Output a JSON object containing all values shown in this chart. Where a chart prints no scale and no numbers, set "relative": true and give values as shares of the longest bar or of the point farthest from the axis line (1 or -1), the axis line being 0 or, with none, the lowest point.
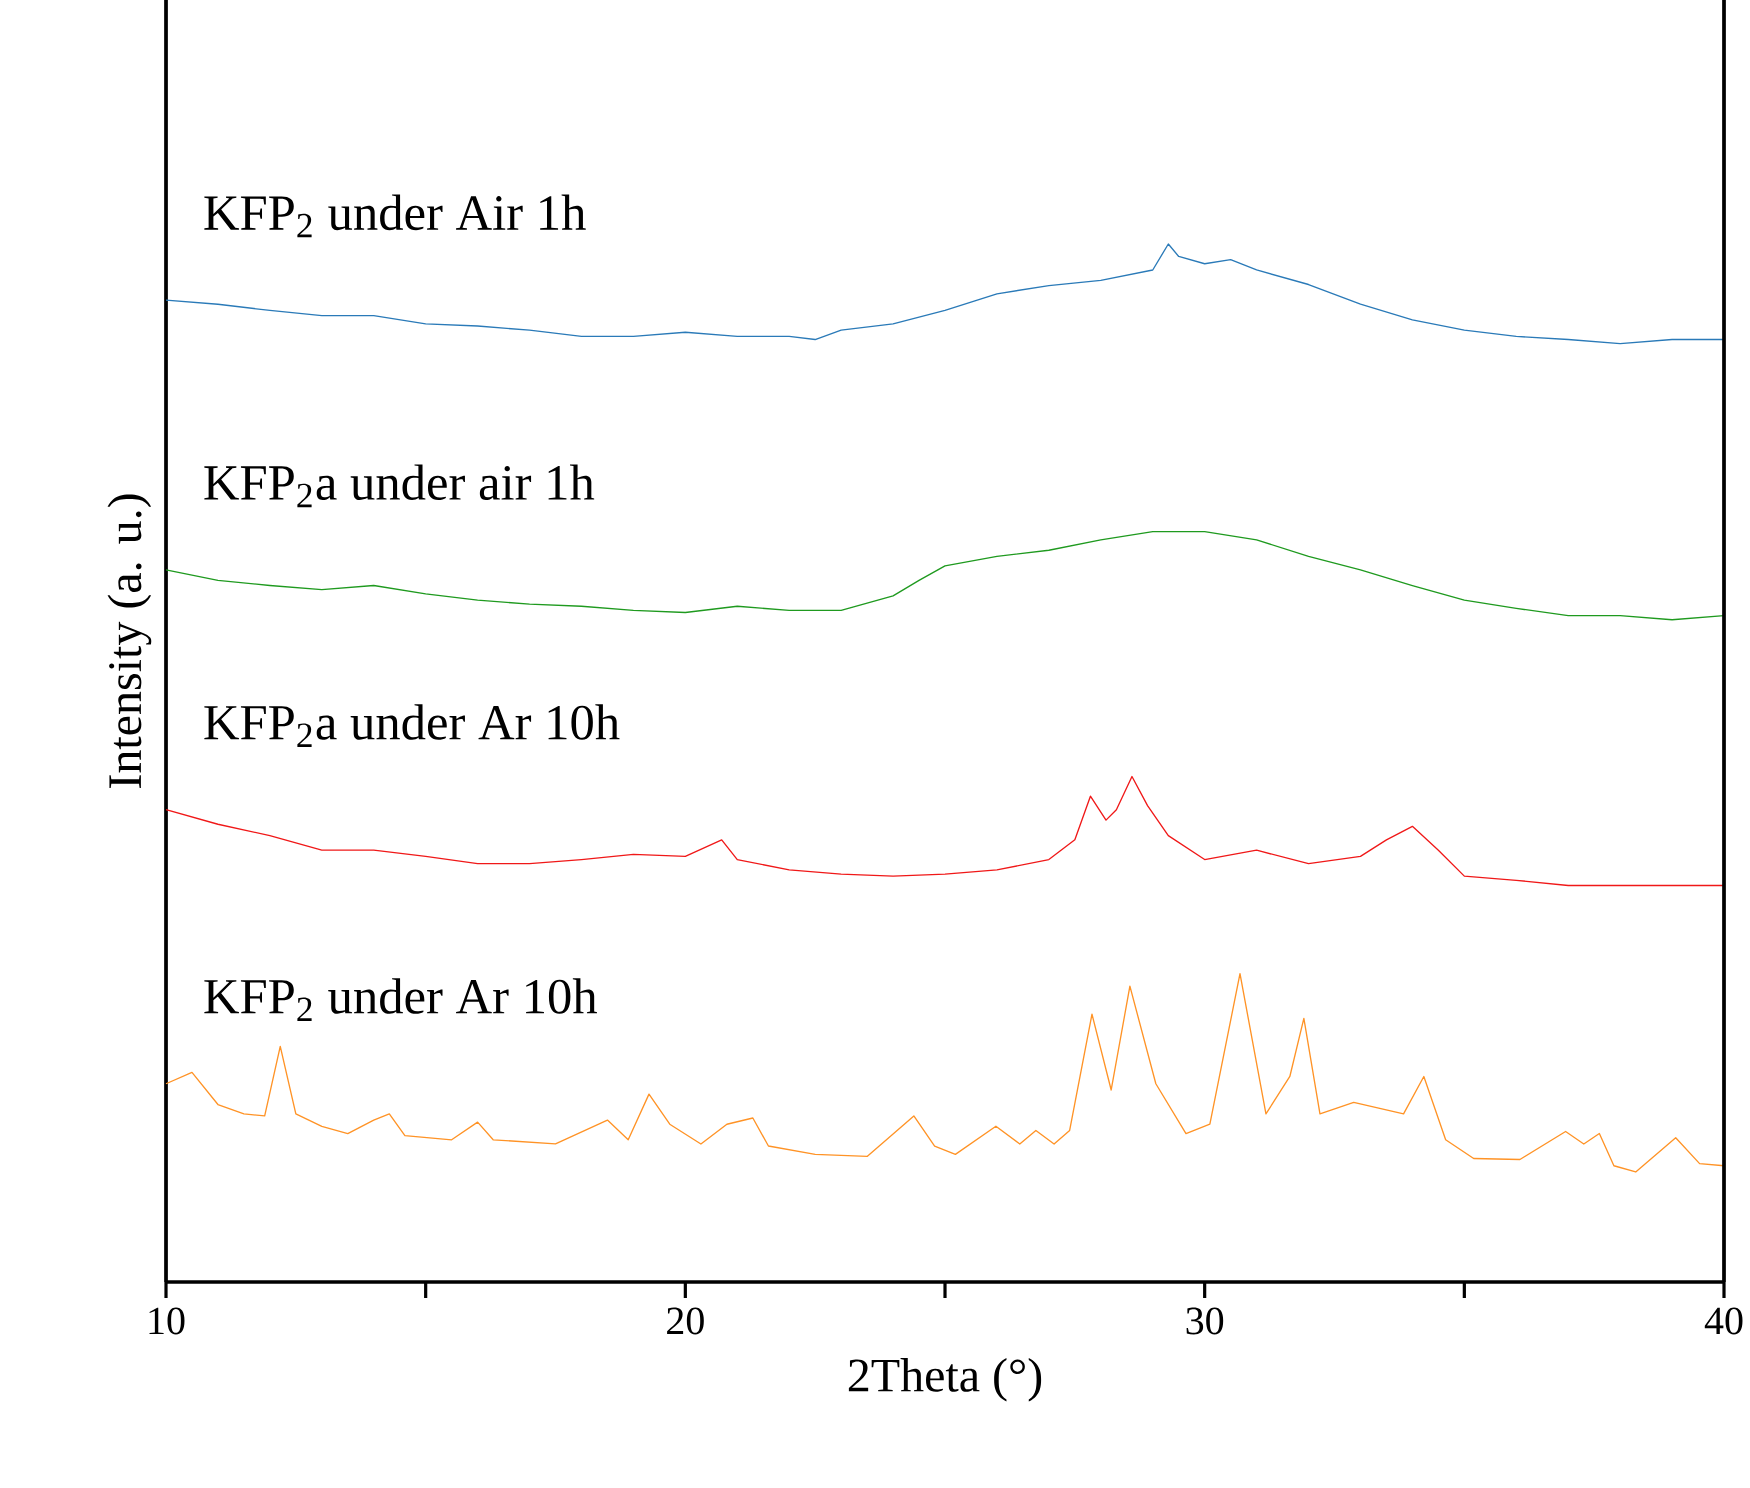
{
  "chart_data": {
    "type": "line",
    "relative": true,
    "xlabel": "2Theta (°)",
    "ylabel": "Intensity (a. u.)",
    "xlim": [
      10,
      40
    ],
    "xticks": [
      10,
      {
        "value": 15,
        "label": null
      },
      20,
      {
        "value": 25,
        "label": null
      },
      30,
      {
        "value": 35,
        "label": null
      },
      40
    ],
    "tick_labels": "x",
    "grid": false,
    "marker": "none",
    "line_style": "solid",
    "series": [
      {
        "name": "KFP$_{2}$ under Air 1h",
        "color": "#2a7ab8",
        "x": [
          10,
          11,
          12,
          13,
          14,
          15,
          16,
          17,
          18,
          19,
          20,
          21,
          22,
          22.5,
          23,
          24,
          25,
          26,
          27,
          28,
          29,
          29.3,
          29.5,
          30,
          30.5,
          31,
          32,
          33,
          34,
          35,
          36,
          37,
          38,
          39,
          40
        ],
        "values": [
          0.946,
          0.942,
          0.936,
          0.931,
          0.931,
          0.923,
          0.921,
          0.917,
          0.911,
          0.911,
          0.915,
          0.911,
          0.911,
          0.908,
          0.917,
          0.923,
          0.936,
          0.952,
          0.96,
          0.965,
          0.975,
          1.0,
          0.988,
          0.981,
          0.985,
          0.975,
          0.961,
          0.942,
          0.927,
          0.917,
          0.911,
          0.908,
          0.904,
          0.908,
          0.908
        ]
      },
      {
        "name": "KFP$_{2}$a under air 1h",
        "color": "#1f9a1f",
        "x": [
          10,
          11,
          12,
          13,
          14,
          15,
          16,
          17,
          18,
          19,
          20,
          21,
          22,
          23,
          24,
          24.5,
          25,
          26,
          27,
          28,
          29,
          30,
          31,
          32,
          33,
          34,
          35,
          36,
          37,
          38,
          39,
          40
        ],
        "values": [
          0.686,
          0.676,
          0.671,
          0.667,
          0.671,
          0.663,
          0.657,
          0.653,
          0.651,
          0.647,
          0.645,
          0.651,
          0.647,
          0.647,
          0.661,
          0.676,
          0.69,
          0.699,
          0.705,
          0.715,
          0.723,
          0.723,
          0.715,
          0.699,
          0.686,
          0.671,
          0.657,
          0.649,
          0.642,
          0.642,
          0.638,
          0.642
        ]
      },
      {
        "name": "KFP$_{2}$a under Ar 10h",
        "color": "#f01818",
        "x": [
          10,
          11,
          12,
          13,
          14,
          15,
          16,
          17,
          18,
          19,
          20,
          20.7,
          21,
          22,
          23,
          24,
          25,
          26,
          27,
          27.5,
          27.8,
          28.1,
          28.3,
          28.6,
          28.9,
          29.3,
          30,
          31,
          32,
          33,
          33.5,
          34,
          34.5,
          35,
          36,
          37,
          38,
          39,
          40
        ],
        "values": [
          0.455,
          0.441,
          0.43,
          0.416,
          0.416,
          0.41,
          0.403,
          0.403,
          0.407,
          0.412,
          0.41,
          0.426,
          0.407,
          0.397,
          0.393,
          0.391,
          0.393,
          0.397,
          0.407,
          0.426,
          0.468,
          0.445,
          0.455,
          0.487,
          0.459,
          0.43,
          0.407,
          0.416,
          0.403,
          0.41,
          0.426,
          0.439,
          0.416,
          0.391,
          0.387,
          0.382,
          0.382,
          0.382,
          0.382
        ]
      },
      {
        "name": "KFP$_{2}$ under Ar 10h",
        "color": "#ff9326",
        "x": [
          10,
          10.5,
          11,
          11.5,
          11.9,
          12.2,
          12.5,
          13,
          13.5,
          14,
          14.3,
          14.6,
          15.5,
          16,
          16.3,
          17.5,
          18.5,
          18.9,
          19.3,
          19.7,
          20.3,
          20.8,
          21.3,
          21.6,
          22.5,
          23.5,
          24.4,
          24.8,
          25.2,
          25.98,
          26.44,
          26.75,
          27.1,
          27.4,
          27.83,
          28.2,
          28.56,
          29.06,
          29.64,
          30.1,
          30.68,
          31.18,
          31.64,
          31.91,
          32.22,
          32.87,
          33.83,
          34.22,
          34.64,
          35.18,
          36.07,
          36.95,
          37.3,
          37.6,
          37.88,
          38.3,
          39.07,
          39.53,
          40
        ],
        "values": [
          0.191,
          0.202,
          0.171,
          0.162,
          0.16,
          0.227,
          0.162,
          0.15,
          0.143,
          0.156,
          0.162,
          0.141,
          0.137,
          0.154,
          0.137,
          0.133,
          0.156,
          0.137,
          0.181,
          0.152,
          0.133,
          0.152,
          0.158,
          0.131,
          0.123,
          0.121,
          0.16,
          0.131,
          0.123,
          0.15,
          0.133,
          0.146,
          0.133,
          0.146,
          0.258,
          0.185,
          0.285,
          0.191,
          0.143,
          0.152,
          0.297,
          0.162,
          0.198,
          0.254,
          0.162,
          0.173,
          0.162,
          0.198,
          0.137,
          0.119,
          0.118,
          0.145,
          0.133,
          0.143,
          0.112,
          0.106,
          0.139,
          0.114,
          0.112
        ]
      }
    ]
  }
}
